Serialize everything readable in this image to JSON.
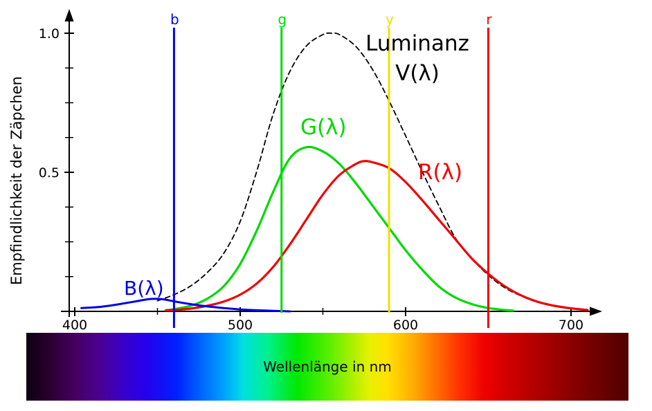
{
  "labels": {
    "luminanz_line1": "Luminanz",
    "luminanz_line2": "V(λ)",
    "green": "G(λ)",
    "red": "R(λ)",
    "blue": "B(λ)"
  },
  "chart_data": {
    "type": "line",
    "title": "",
    "xlabel": "Wellenlänge in nm",
    "ylabel": "Empfindlichkeit der Zäpchen",
    "xlim": [
      400,
      710
    ],
    "ylim": [
      0,
      1.05
    ],
    "grid": false,
    "legend_position": "none",
    "x_ticks_major": [
      400,
      500,
      600,
      700
    ],
    "x_tick_labels": [
      "400",
      "500",
      "600",
      "700"
    ],
    "x_ticks_minor": [
      450,
      550,
      650
    ],
    "y_ticks_major": [
      1.0,
      0.5
    ],
    "y_tick_labels": [
      "1.0",
      "0.5"
    ],
    "y_ticks_minor": [
      0.125,
      0.25,
      0.375,
      0.625,
      0.75,
      0.875
    ],
    "series": [
      {
        "id": "luminanz",
        "name": "Luminanz V(λ)",
        "color": "#000000",
        "dash": "7 5",
        "width": 1.8,
        "points": [
          [
            450,
            0.038
          ],
          [
            460,
            0.06
          ],
          [
            470,
            0.091
          ],
          [
            480,
            0.139
          ],
          [
            490,
            0.208
          ],
          [
            500,
            0.323
          ],
          [
            510,
            0.503
          ],
          [
            520,
            0.71
          ],
          [
            530,
            0.862
          ],
          [
            540,
            0.954
          ],
          [
            550,
            0.995
          ],
          [
            555,
            1.0
          ],
          [
            560,
            0.995
          ],
          [
            570,
            0.952
          ],
          [
            580,
            0.87
          ],
          [
            590,
            0.757
          ],
          [
            600,
            0.631
          ],
          [
            610,
            0.503
          ],
          [
            620,
            0.381
          ],
          [
            630,
            0.265
          ],
          [
            640,
            0.19
          ],
          [
            650,
            0.13
          ],
          [
            660,
            0.085
          ],
          [
            670,
            0.055
          ],
          [
            680,
            0.033
          ],
          [
            690,
            0.02
          ],
          [
            700,
            0.011
          ],
          [
            710,
            0.005
          ]
        ]
      },
      {
        "id": "green",
        "name": "G(λ)",
        "color": "#00d800",
        "width": 3.2,
        "points": [
          [
            455,
            0.004
          ],
          [
            460,
            0.008
          ],
          [
            470,
            0.02
          ],
          [
            480,
            0.045
          ],
          [
            490,
            0.09
          ],
          [
            500,
            0.17
          ],
          [
            510,
            0.29
          ],
          [
            520,
            0.43
          ],
          [
            530,
            0.55
          ],
          [
            540,
            0.59
          ],
          [
            550,
            0.575
          ],
          [
            560,
            0.53
          ],
          [
            570,
            0.46
          ],
          [
            580,
            0.38
          ],
          [
            590,
            0.3
          ],
          [
            600,
            0.22
          ],
          [
            610,
            0.15
          ],
          [
            620,
            0.09
          ],
          [
            630,
            0.05
          ],
          [
            640,
            0.026
          ],
          [
            650,
            0.012
          ],
          [
            660,
            0.005
          ],
          [
            665,
            0.003
          ]
        ]
      },
      {
        "id": "red",
        "name": "R(λ)",
        "color": "#ee0000",
        "width": 3.2,
        "points": [
          [
            455,
            0.003
          ],
          [
            460,
            0.005
          ],
          [
            470,
            0.01
          ],
          [
            480,
            0.02
          ],
          [
            490,
            0.035
          ],
          [
            500,
            0.06
          ],
          [
            510,
            0.1
          ],
          [
            520,
            0.16
          ],
          [
            530,
            0.24
          ],
          [
            540,
            0.33
          ],
          [
            550,
            0.42
          ],
          [
            560,
            0.49
          ],
          [
            570,
            0.53
          ],
          [
            575,
            0.54
          ],
          [
            580,
            0.536
          ],
          [
            590,
            0.515
          ],
          [
            600,
            0.465
          ],
          [
            610,
            0.4
          ],
          [
            620,
            0.33
          ],
          [
            630,
            0.26
          ],
          [
            640,
            0.19
          ],
          [
            650,
            0.135
          ],
          [
            660,
            0.09
          ],
          [
            670,
            0.057
          ],
          [
            680,
            0.034
          ],
          [
            690,
            0.02
          ],
          [
            700,
            0.011
          ],
          [
            710,
            0.005
          ]
        ]
      },
      {
        "id": "blue",
        "name": "B(λ)",
        "color": "#0000e6",
        "width": 3,
        "points": [
          [
            404,
            0.012
          ],
          [
            415,
            0.016
          ],
          [
            425,
            0.024
          ],
          [
            435,
            0.034
          ],
          [
            445,
            0.044
          ],
          [
            450,
            0.045
          ],
          [
            455,
            0.042
          ],
          [
            460,
            0.036
          ],
          [
            470,
            0.026
          ],
          [
            480,
            0.018
          ],
          [
            490,
            0.012
          ],
          [
            500,
            0.007
          ],
          [
            510,
            0.004
          ],
          [
            520,
            0.002
          ],
          [
            530,
            0.0
          ]
        ]
      }
    ],
    "primaries": [
      {
        "name": "b",
        "wavelength": 460,
        "color": "#0000ff",
        "below_axis": true
      },
      {
        "name": "g",
        "wavelength": 525,
        "color": "#00d800",
        "below_axis": false
      },
      {
        "name": "y",
        "wavelength": 590,
        "color": "#f0e000",
        "below_axis": false
      },
      {
        "name": "r",
        "wavelength": 650,
        "color": "#ee0000",
        "below_axis": true
      }
    ]
  }
}
